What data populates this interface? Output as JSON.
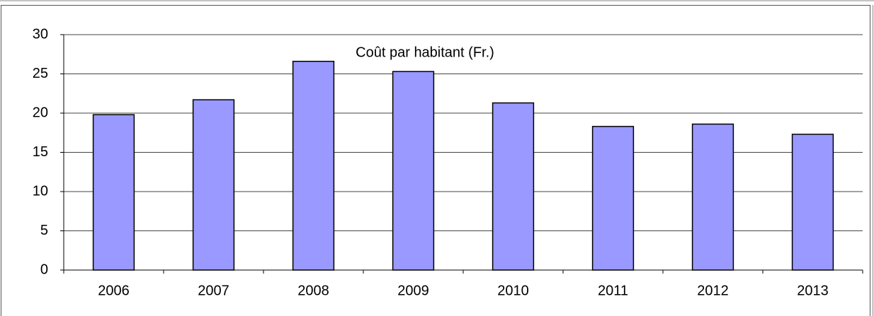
{
  "chart_data": {
    "type": "bar",
    "title": "Coût par habitant (Fr.)",
    "categories": [
      "2006",
      "2007",
      "2008",
      "2009",
      "2010",
      "2011",
      "2012",
      "2013"
    ],
    "values": [
      19.8,
      21.7,
      26.6,
      25.3,
      21.3,
      18.3,
      18.6,
      17.3
    ],
    "color": "#9999ff",
    "ylim": [
      0,
      30
    ],
    "yticks": [
      0,
      5,
      10,
      15,
      20,
      25,
      30
    ],
    "grid": true
  }
}
